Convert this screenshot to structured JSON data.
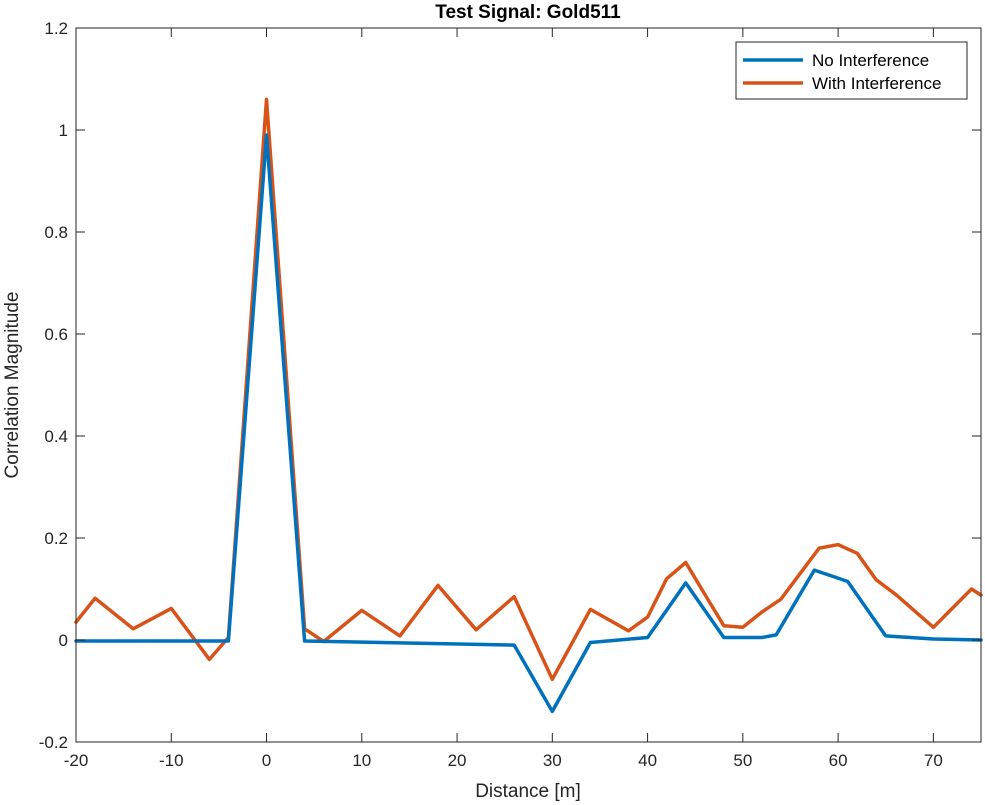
{
  "chart_data": {
    "type": "line",
    "title": "Test Signal: Gold511",
    "xlabel": "Distance [m]",
    "ylabel": "Correlation Magnitude",
    "xlim": [
      -20,
      75
    ],
    "ylim": [
      -0.2,
      1.2
    ],
    "xticks": [
      -20,
      -10,
      0,
      10,
      20,
      30,
      40,
      50,
      60,
      70
    ],
    "xtick_labels": [
      "-20",
      "-10",
      "0",
      "10",
      "20",
      "30",
      "40",
      "50",
      "60",
      "70"
    ],
    "yticks": [
      -0.2,
      0,
      0.2,
      0.4,
      0.6,
      0.8,
      1,
      1.2
    ],
    "ytick_labels": [
      "-0.2",
      "0",
      "0.2",
      "0.4",
      "0.6",
      "0.8",
      "1",
      "1.2"
    ],
    "grid": false,
    "legend_position": "top-right",
    "series": [
      {
        "name": "No Interference",
        "color": "#0072BD",
        "x": [
          -20,
          -4,
          0,
          4,
          26,
          30,
          34,
          40,
          44,
          48,
          52,
          53.5,
          57.5,
          61,
          65,
          70,
          75
        ],
        "y": [
          -0.002,
          -0.002,
          0.99,
          -0.002,
          -0.01,
          -0.14,
          -0.005,
          0.005,
          0.112,
          0.005,
          0.005,
          0.01,
          0.137,
          0.115,
          0.008,
          0.002,
          0
        ]
      },
      {
        "name": "With Interference",
        "color": "#D95319",
        "x": [
          -20,
          -18,
          -14,
          -10,
          -6,
          -4,
          0,
          4,
          6,
          10,
          14,
          18,
          22,
          26,
          30,
          34,
          38,
          40,
          42,
          44,
          46,
          48,
          50,
          52,
          54,
          56,
          58,
          60,
          62,
          64,
          66,
          70,
          74,
          75
        ],
        "y": [
          0.035,
          0.082,
          0.022,
          0.062,
          -0.038,
          0.005,
          1.06,
          0.022,
          -0.003,
          0.058,
          0.008,
          0.107,
          0.02,
          0.085,
          -0.077,
          0.06,
          0.018,
          0.045,
          0.12,
          0.152,
          0.09,
          0.028,
          0.025,
          0.055,
          0.08,
          0.13,
          0.18,
          0.187,
          0.17,
          0.118,
          0.09,
          0.025,
          0.1,
          0.088
        ]
      }
    ]
  }
}
